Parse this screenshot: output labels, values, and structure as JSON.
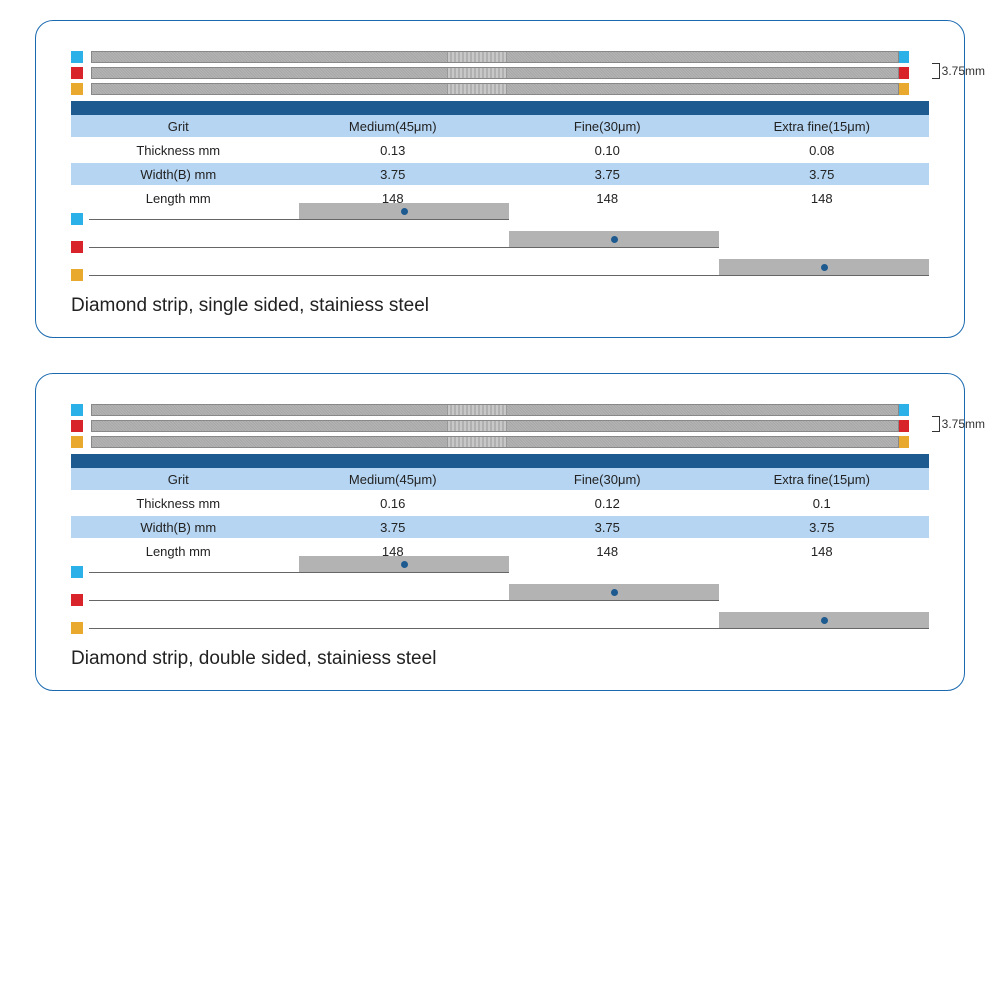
{
  "colors": {
    "panel_border": "#1b6ab0",
    "dark_bar": "#1d5a8f",
    "row_blue": "#b6d5f2",
    "row_white": "#ffffff",
    "strip_gray": "#a8a8a8",
    "fill_gray": "#b3b3b3",
    "dot": "#1d5a8f",
    "blue_sq": "#2bb0e8",
    "red_sq": "#d8232a",
    "yellow_sq": "#e8a92e"
  },
  "dimension_label": "3.75mm",
  "panels": [
    {
      "caption": "Diamond strip, single sided, stainiess steel",
      "strip_colors": [
        "blue_sq",
        "red_sq",
        "yellow_sq"
      ],
      "table": {
        "headers": [
          "Grit",
          "Medium(45μm)",
          "Fine(30μm)",
          "Extra fine(15μm)"
        ],
        "rows": [
          [
            "Thickness mm",
            "0.13",
            "0.10",
            "0.08"
          ],
          [
            "Width(B) mm",
            "3.75",
            "3.75",
            "3.75"
          ],
          [
            "Length mm",
            "148",
            "148",
            "148"
          ]
        ]
      },
      "grit_bars": [
        {
          "color": "blue_sq",
          "fill_start": 25,
          "fill_end": 50,
          "line_end": 50
        },
        {
          "color": "red_sq",
          "fill_start": 50,
          "fill_end": 75,
          "line_end": 75
        },
        {
          "color": "yellow_sq",
          "fill_start": 75,
          "fill_end": 100,
          "line_end": 100
        }
      ]
    },
    {
      "caption": "Diamond strip, double sided, stainiess steel",
      "strip_colors": [
        "blue_sq",
        "red_sq",
        "yellow_sq"
      ],
      "table": {
        "headers": [
          "Grit",
          "Medium(45μm)",
          "Fine(30μm)",
          "Extra fine(15μm)"
        ],
        "rows": [
          [
            "Thickness mm",
            "0.16",
            "0.12",
            "0.1"
          ],
          [
            "Width(B) mm",
            "3.75",
            "3.75",
            "3.75"
          ],
          [
            "Length mm",
            "148",
            "148",
            "148"
          ]
        ]
      },
      "grit_bars": [
        {
          "color": "blue_sq",
          "fill_start": 25,
          "fill_end": 50,
          "line_end": 50
        },
        {
          "color": "red_sq",
          "fill_start": 50,
          "fill_end": 75,
          "line_end": 75
        },
        {
          "color": "yellow_sq",
          "fill_start": 75,
          "fill_end": 100,
          "line_end": 100
        }
      ]
    }
  ]
}
